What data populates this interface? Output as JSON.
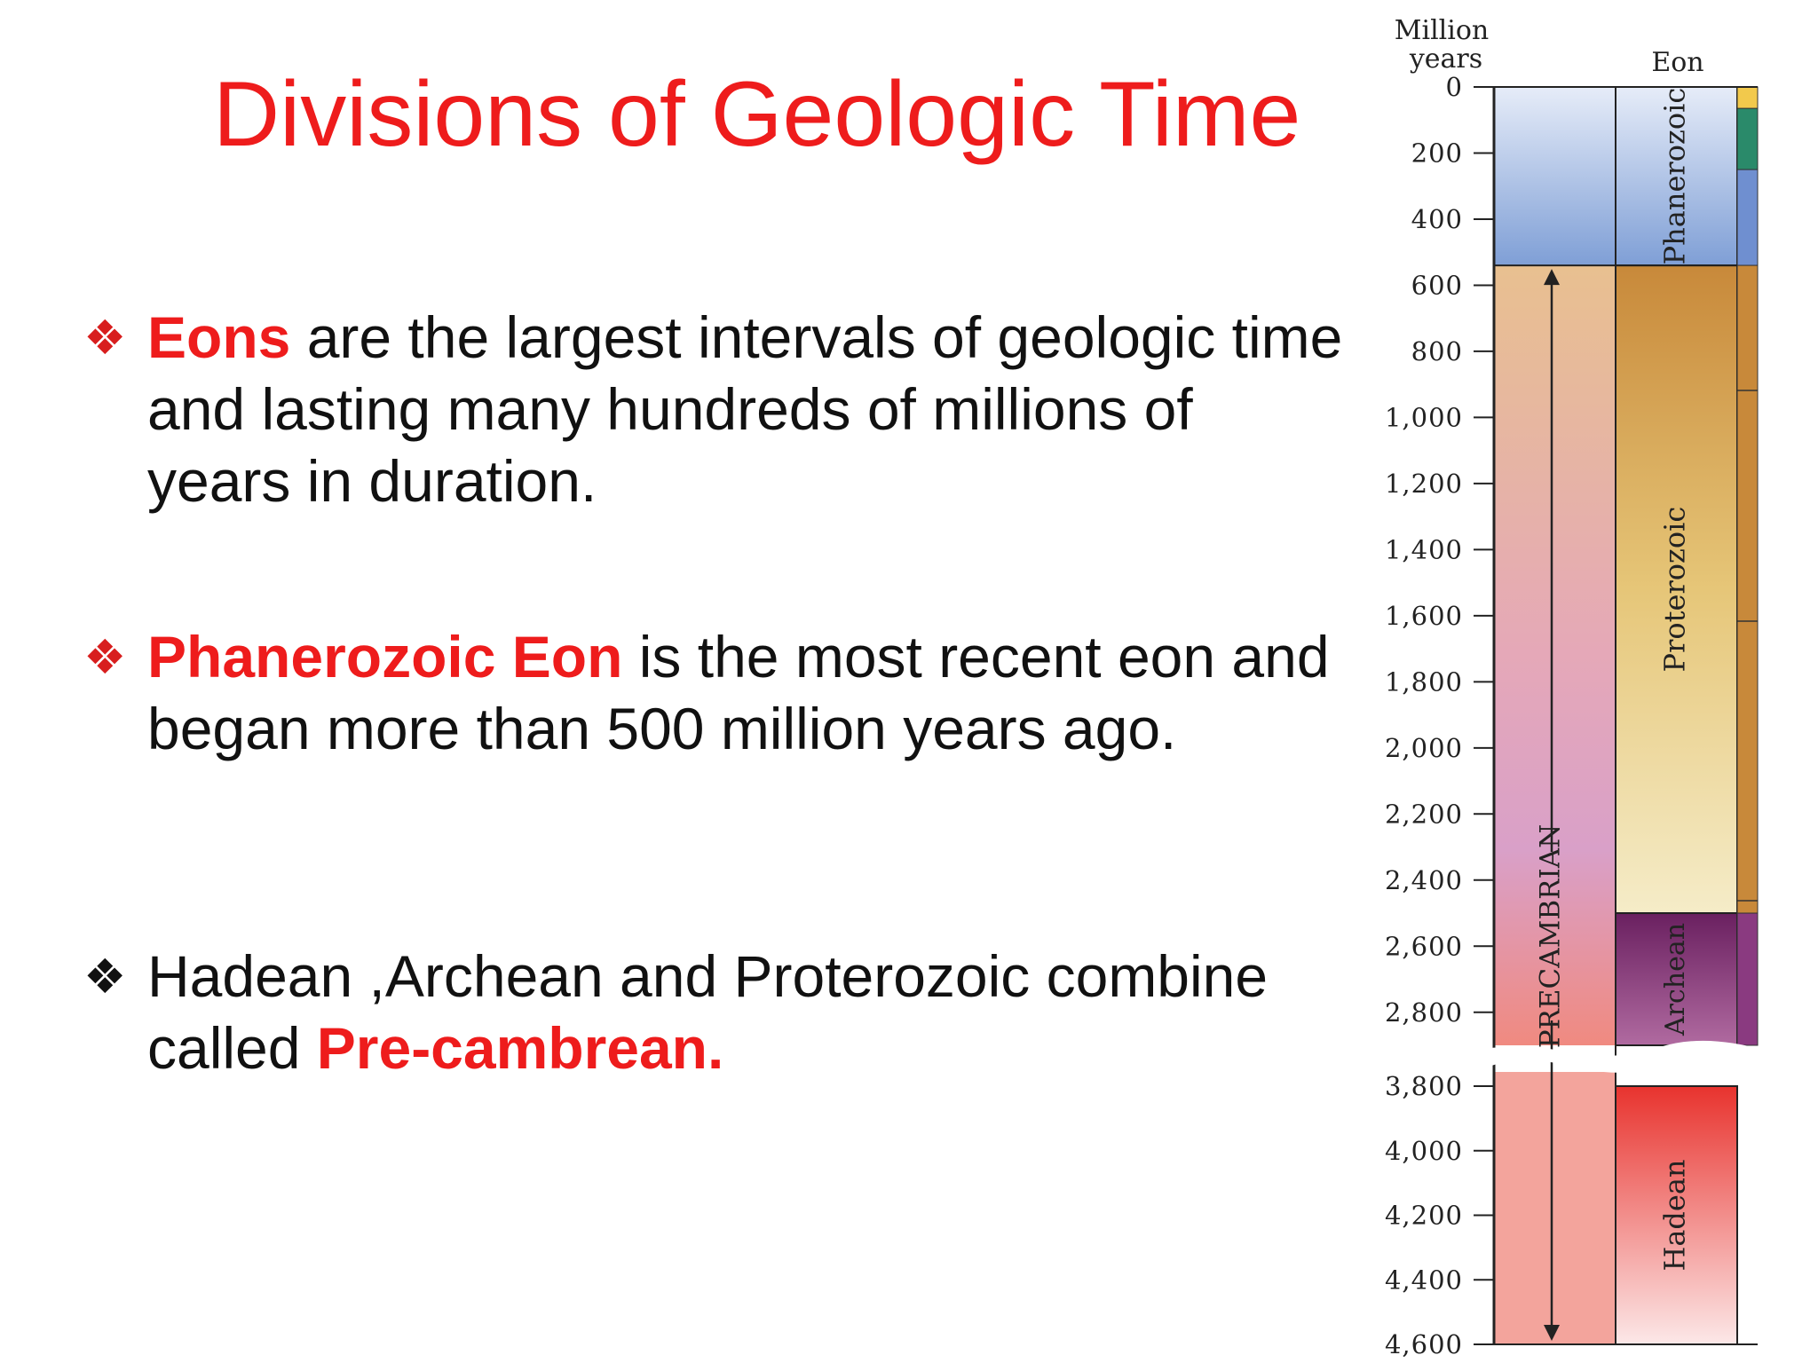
{
  "slide": {
    "title": "Divisions of Geologic Time",
    "bullets": [
      {
        "bold": "Eons",
        "rest": " are the largest intervals of geologic time and lasting many  hundreds of millions of years in duration."
      },
      {
        "bold": "Phanerozoic Eon",
        "rest": " is the most recent eon and began more than 500 million years ago."
      },
      {
        "lead": "Hadean ,Archean  and Proterozoic combine called ",
        "bold": "Pre-cambrean."
      }
    ]
  },
  "chart_data": {
    "type": "stratigraphic-column",
    "axis_label": [
      "Million",
      "years"
    ],
    "column_header": "Eon",
    "ticks": [
      "0",
      "200",
      "400",
      "600",
      "800",
      "1,000",
      "1,200",
      "1,400",
      "1,600",
      "1,800",
      "2,000",
      "2,200",
      "2,400",
      "2,600",
      "2,800",
      "3,800",
      "4,000",
      "4,200",
      "4,400",
      "4,600"
    ],
    "axis_break_between": [
      "2,800",
      "3,800"
    ],
    "supereon": {
      "label": "PRECAMBRIAN",
      "from": 540,
      "to": 4600
    },
    "eons": [
      {
        "name": "Phanerozoic",
        "from": 0,
        "to": 540,
        "color": "#8aa8d8"
      },
      {
        "name": "Proterozoic",
        "from": 540,
        "to": 2500,
        "color": "#d9a25a"
      },
      {
        "name": "Archean",
        "from": 2500,
        "to": 3800,
        "color": "#7a2a6e"
      },
      {
        "name": "Hadean",
        "from": 3800,
        "to": 4600,
        "color": "#e8453e"
      }
    ]
  }
}
